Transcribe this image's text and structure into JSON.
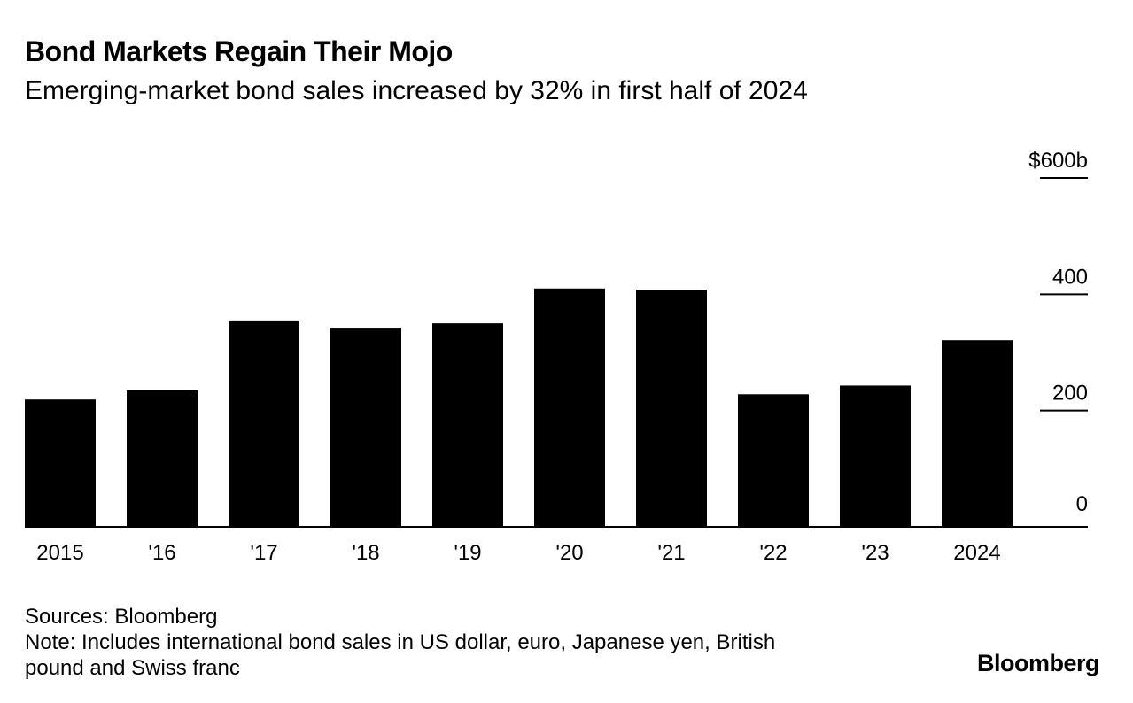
{
  "chart_data": {
    "type": "bar",
    "title": "Bond Markets Regain Their Mojo",
    "subtitle": "Emerging-market bond sales increased by 32% in first half of 2024",
    "categories": [
      "2015",
      "'16",
      "'17",
      "'18",
      "'19",
      "'20",
      "'21",
      "'22",
      "'23",
      "2024"
    ],
    "values": [
      219,
      235,
      355,
      341,
      350,
      410,
      408,
      228,
      243,
      321
    ],
    "ylim": [
      0,
      600
    ],
    "yticks": [
      0,
      200,
      400,
      600
    ],
    "ytick_labels": [
      "0",
      "200",
      "400",
      "$600b"
    ],
    "xlabel": "",
    "ylabel": "",
    "grid": false,
    "bar_color": "#000000",
    "axis_side": "right"
  },
  "footer": {
    "sources": "Sources: Bloomberg",
    "note_line1": "Note: Includes international bond sales in US dollar, euro, Japanese yen, British",
    "note_line2": "pound and Swiss franc"
  },
  "brand": "Bloomberg"
}
